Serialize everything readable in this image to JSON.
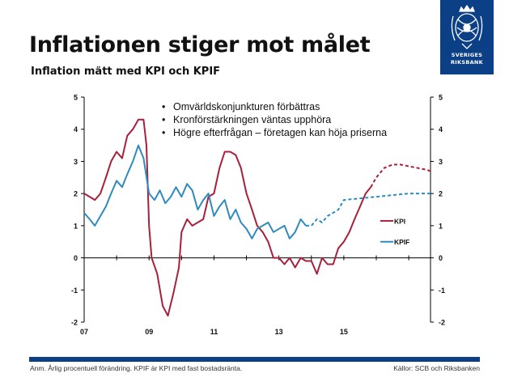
{
  "slide": {
    "title": "Inflationen stiger mot målet",
    "subtitle": "Inflation mätt med KPI och KPIF",
    "logo_text": [
      "SVERIGES",
      "RIKSBANK"
    ],
    "footnote": "Anm. Årlig procentuell förändring. KPIF är KPI med fast bostadsränta.",
    "source": "Källor: SCB och Riksbanken"
  },
  "bullets": [
    "Omvärldskonjunkturen förbättras",
    "Kronförstärkningen väntas upphöra",
    "Högre efterfrågan – företagen kan höja priserna"
  ],
  "colors": {
    "kpi": "#a8203a",
    "kpif": "#2e8bbf",
    "brand": "#0b3f86"
  },
  "chart_data": {
    "type": "line",
    "title": "Inflation mätt med KPI och KPIF",
    "xlabel": "",
    "ylabel": "",
    "x_range": [
      2007,
      2017.67
    ],
    "ylim": [
      -2,
      5
    ],
    "yticks": [
      -2,
      -1,
      0,
      1,
      2,
      3,
      4,
      5
    ],
    "x_tick_labels": [
      {
        "x": 2007,
        "label": "07"
      },
      {
        "x": 2009,
        "label": "09"
      },
      {
        "x": 2011,
        "label": "11"
      },
      {
        "x": 2013,
        "label": "13"
      },
      {
        "x": 2015,
        "label": "15"
      }
    ],
    "grid": false,
    "legend": "right, inline labels",
    "series": [
      {
        "name": "KPI",
        "color": "#a8203a",
        "values": [
          [
            2007.0,
            2.0
          ],
          [
            2007.17,
            1.9
          ],
          [
            2007.33,
            1.8
          ],
          [
            2007.5,
            2.0
          ],
          [
            2007.67,
            2.5
          ],
          [
            2007.83,
            3.0
          ],
          [
            2008.0,
            3.3
          ],
          [
            2008.17,
            3.1
          ],
          [
            2008.33,
            3.8
          ],
          [
            2008.5,
            4.0
          ],
          [
            2008.67,
            4.3
          ],
          [
            2008.83,
            4.3
          ],
          [
            2008.92,
            3.5
          ],
          [
            2009.0,
            1.0
          ],
          [
            2009.08,
            0.0
          ],
          [
            2009.25,
            -0.5
          ],
          [
            2009.42,
            -1.5
          ],
          [
            2009.58,
            -1.8
          ],
          [
            2009.75,
            -1.1
          ],
          [
            2009.92,
            -0.3
          ],
          [
            2010.0,
            0.8
          ],
          [
            2010.17,
            1.2
          ],
          [
            2010.33,
            1.0
          ],
          [
            2010.5,
            1.1
          ],
          [
            2010.67,
            1.2
          ],
          [
            2010.83,
            1.9
          ],
          [
            2011.0,
            2.0
          ],
          [
            2011.17,
            2.8
          ],
          [
            2011.33,
            3.3
          ],
          [
            2011.5,
            3.3
          ],
          [
            2011.67,
            3.2
          ],
          [
            2011.83,
            2.8
          ],
          [
            2012.0,
            2.0
          ],
          [
            2012.17,
            1.5
          ],
          [
            2012.33,
            1.0
          ],
          [
            2012.5,
            0.8
          ],
          [
            2012.67,
            0.5
          ],
          [
            2012.83,
            0.0
          ],
          [
            2013.0,
            0.0
          ],
          [
            2013.17,
            -0.2
          ],
          [
            2013.33,
            0.0
          ],
          [
            2013.5,
            -0.3
          ],
          [
            2013.67,
            0.0
          ],
          [
            2013.83,
            -0.1
          ],
          [
            2014.0,
            -0.1
          ],
          [
            2014.17,
            -0.5
          ],
          [
            2014.33,
            0.0
          ],
          [
            2014.5,
            -0.2
          ],
          [
            2014.67,
            -0.2
          ],
          [
            2014.83,
            0.3
          ],
          [
            2015.0,
            0.5
          ],
          [
            2015.17,
            0.8
          ],
          [
            2015.33,
            1.2
          ],
          [
            2015.5,
            1.6
          ],
          [
            2015.67,
            2.0
          ],
          [
            2015.83,
            2.2
          ]
        ]
      },
      {
        "name": "KPI (prognos)",
        "color": "#a8203a",
        "dashed": true,
        "values": [
          [
            2015.83,
            2.2
          ],
          [
            2016.0,
            2.5
          ],
          [
            2016.25,
            2.8
          ],
          [
            2016.5,
            2.9
          ],
          [
            2016.75,
            2.9
          ],
          [
            2017.0,
            2.85
          ],
          [
            2017.25,
            2.8
          ],
          [
            2017.5,
            2.75
          ],
          [
            2017.67,
            2.7
          ]
        ]
      },
      {
        "name": "KPIF",
        "color": "#2e8bbf",
        "values": [
          [
            2007.0,
            1.4
          ],
          [
            2007.17,
            1.2
          ],
          [
            2007.33,
            1.0
          ],
          [
            2007.5,
            1.3
          ],
          [
            2007.67,
            1.6
          ],
          [
            2007.83,
            2.0
          ],
          [
            2008.0,
            2.4
          ],
          [
            2008.17,
            2.2
          ],
          [
            2008.33,
            2.6
          ],
          [
            2008.5,
            3.0
          ],
          [
            2008.67,
            3.5
          ],
          [
            2008.83,
            3.1
          ],
          [
            2009.0,
            2.0
          ],
          [
            2009.17,
            1.8
          ],
          [
            2009.33,
            2.1
          ],
          [
            2009.5,
            1.7
          ],
          [
            2009.67,
            1.9
          ],
          [
            2009.83,
            2.2
          ],
          [
            2010.0,
            1.9
          ],
          [
            2010.17,
            2.3
          ],
          [
            2010.33,
            2.1
          ],
          [
            2010.5,
            1.5
          ],
          [
            2010.67,
            1.8
          ],
          [
            2010.83,
            2.0
          ],
          [
            2011.0,
            1.3
          ],
          [
            2011.17,
            1.6
          ],
          [
            2011.33,
            1.8
          ],
          [
            2011.5,
            1.2
          ],
          [
            2011.67,
            1.5
          ],
          [
            2011.83,
            1.1
          ],
          [
            2012.0,
            0.9
          ],
          [
            2012.17,
            0.6
          ],
          [
            2012.33,
            0.9
          ],
          [
            2012.5,
            1.0
          ],
          [
            2012.67,
            1.1
          ],
          [
            2012.83,
            0.8
          ],
          [
            2013.0,
            0.9
          ],
          [
            2013.17,
            1.0
          ],
          [
            2013.33,
            0.6
          ],
          [
            2013.5,
            0.8
          ],
          [
            2013.67,
            1.2
          ],
          [
            2013.83,
            1.0
          ]
        ]
      },
      {
        "name": "KPIF (prognos)",
        "color": "#2e8bbf",
        "dashed": true,
        "values": [
          [
            2013.83,
            1.0
          ],
          [
            2014.0,
            1.0
          ],
          [
            2014.17,
            1.2
          ],
          [
            2014.33,
            1.1
          ],
          [
            2014.5,
            1.3
          ],
          [
            2014.67,
            1.4
          ],
          [
            2014.83,
            1.5
          ],
          [
            2015.0,
            1.8
          ],
          [
            2015.5,
            1.85
          ],
          [
            2016.0,
            1.9
          ],
          [
            2016.5,
            1.95
          ],
          [
            2017.0,
            2.0
          ],
          [
            2017.67,
            2.0
          ]
        ]
      }
    ],
    "legend_entries": [
      {
        "label": "KPI",
        "series": 0,
        "y": 1.15
      },
      {
        "label": "KPIF",
        "series": 2,
        "y": 0.5
      }
    ]
  }
}
